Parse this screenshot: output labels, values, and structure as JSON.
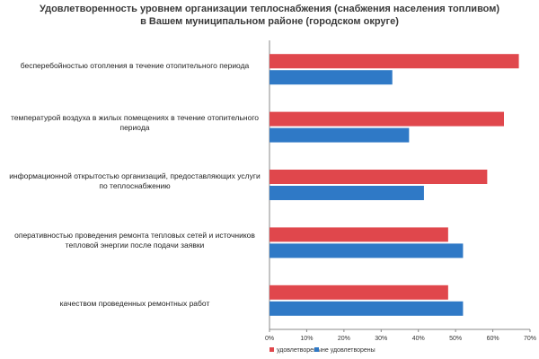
{
  "chart_data": {
    "type": "bar",
    "orientation": "horizontal",
    "title": "Удовлетворенность уровнем организации теплоснабжения (снабжения населения топливом) в Вашем муниципальном районе (городском округе)",
    "categories": [
      "бесперебойностью отопления в течение отопительного периода",
      "температурой воздуха в жилых помещениях в течение отопительного периода",
      "информационной открытостью организаций, предоставляющих услуги по теплоснабжению",
      "оперативностью проведения ремонта тепловых сетей и источников тепловой энергии после подачи заявки",
      "качеством проведенных ремонтных работ"
    ],
    "series": [
      {
        "name": "удовлетворены",
        "color": "#e0474c",
        "values": [
          67,
          63,
          58.5,
          48,
          48
        ]
      },
      {
        "name": "не удовлетворены",
        "color": "#2f79c6",
        "values": [
          33,
          37.5,
          41.5,
          52,
          52
        ]
      }
    ],
    "xlim": [
      0,
      70
    ],
    "x_ticks": [
      "0%",
      "10%",
      "20%",
      "30%",
      "40%",
      "50%",
      "60%",
      "70%"
    ],
    "grid": false,
    "legend_position": "bottom"
  }
}
